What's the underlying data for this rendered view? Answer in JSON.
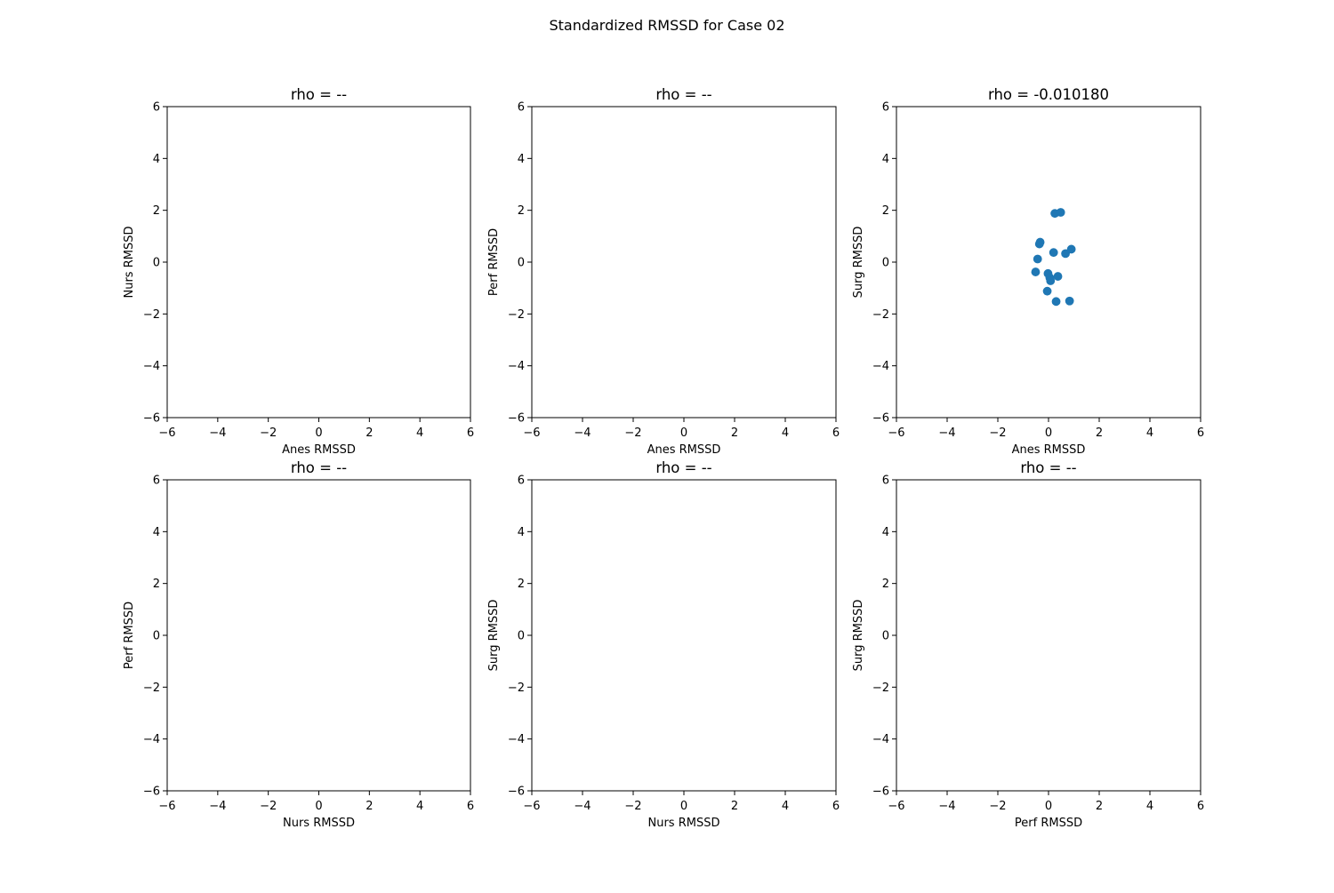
{
  "figure": {
    "title": "Standardized RMSSD for Case 02"
  },
  "chart_data": [
    {
      "type": "scatter",
      "title": "rho = --",
      "xlabel": "Anes RMSSD",
      "ylabel": "Nurs RMSSD",
      "xlim": [
        -6,
        6
      ],
      "ylim": [
        -6,
        6
      ],
      "xticks": [
        "−6",
        "−4",
        "−2",
        "0",
        "2",
        "4",
        "6"
      ],
      "yticks": [
        "−6",
        "−4",
        "−2",
        "0",
        "2",
        "4",
        "6"
      ],
      "grid": false,
      "color": "#1f77b4",
      "points": []
    },
    {
      "type": "scatter",
      "title": "rho = --",
      "xlabel": "Anes RMSSD",
      "ylabel": "Perf RMSSD",
      "xlim": [
        -6,
        6
      ],
      "ylim": [
        -6,
        6
      ],
      "xticks": [
        "−6",
        "−4",
        "−2",
        "0",
        "2",
        "4",
        "6"
      ],
      "yticks": [
        "−6",
        "−4",
        "−2",
        "0",
        "2",
        "4",
        "6"
      ],
      "grid": false,
      "color": "#1f77b4",
      "points": []
    },
    {
      "type": "scatter",
      "title": "rho = -0.010180",
      "xlabel": "Anes RMSSD",
      "ylabel": "Surg RMSSD",
      "xlim": [
        -6,
        6
      ],
      "ylim": [
        -6,
        6
      ],
      "xticks": [
        "−6",
        "−4",
        "−2",
        "0",
        "2",
        "4",
        "6"
      ],
      "yticks": [
        "−6",
        "−4",
        "−2",
        "0",
        "2",
        "4",
        "6"
      ],
      "grid": false,
      "color": "#1f77b4",
      "points": [
        [
          0.25,
          1.88
        ],
        [
          0.48,
          1.92
        ],
        [
          -0.33,
          0.77
        ],
        [
          -0.36,
          0.7
        ],
        [
          -0.43,
          0.12
        ],
        [
          0.2,
          0.37
        ],
        [
          0.67,
          0.33
        ],
        [
          0.9,
          0.5
        ],
        [
          -0.51,
          -0.38
        ],
        [
          -0.02,
          -0.44
        ],
        [
          0.05,
          -0.6
        ],
        [
          0.08,
          -0.72
        ],
        [
          0.37,
          -0.55
        ],
        [
          -0.05,
          -1.12
        ],
        [
          0.3,
          -1.52
        ],
        [
          0.83,
          -1.5
        ]
      ]
    },
    {
      "type": "scatter",
      "title": "rho = --",
      "xlabel": "Nurs RMSSD",
      "ylabel": "Perf RMSSD",
      "xlim": [
        -6,
        6
      ],
      "ylim": [
        -6,
        6
      ],
      "xticks": [
        "−6",
        "−4",
        "−2",
        "0",
        "2",
        "4",
        "6"
      ],
      "yticks": [
        "−6",
        "−4",
        "−2",
        "0",
        "2",
        "4",
        "6"
      ],
      "grid": false,
      "color": "#1f77b4",
      "points": []
    },
    {
      "type": "scatter",
      "title": "rho = --",
      "xlabel": "Nurs RMSSD",
      "ylabel": "Surg RMSSD",
      "xlim": [
        -6,
        6
      ],
      "ylim": [
        -6,
        6
      ],
      "xticks": [
        "−6",
        "−4",
        "−2",
        "0",
        "2",
        "4",
        "6"
      ],
      "yticks": [
        "−6",
        "−4",
        "−2",
        "0",
        "2",
        "4",
        "6"
      ],
      "grid": false,
      "color": "#1f77b4",
      "points": []
    },
    {
      "type": "scatter",
      "title": "rho = --",
      "xlabel": "Perf RMSSD",
      "ylabel": "Surg RMSSD",
      "xlim": [
        -6,
        6
      ],
      "ylim": [
        -6,
        6
      ],
      "xticks": [
        "−6",
        "−4",
        "−2",
        "0",
        "2",
        "4",
        "6"
      ],
      "yticks": [
        "−6",
        "−4",
        "−2",
        "0",
        "2",
        "4",
        "6"
      ],
      "grid": false,
      "color": "#1f77b4",
      "points": []
    }
  ]
}
